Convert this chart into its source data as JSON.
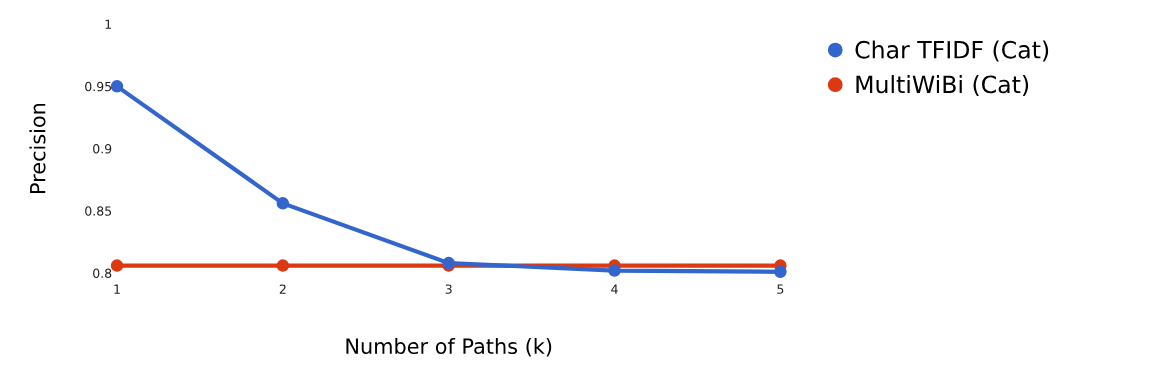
{
  "chart_data": {
    "type": "line",
    "xlabel": "Number of Paths (k)",
    "ylabel": "Precision",
    "x": [
      1,
      2,
      3,
      4,
      5
    ],
    "series": [
      {
        "name": "Char TFIDF (Cat)",
        "color": "#3366cc",
        "values": [
          0.95,
          0.856,
          0.808,
          0.802,
          0.801
        ]
      },
      {
        "name": "MultiWiBi (Cat)",
        "color": "#dc3912",
        "values": [
          0.806,
          0.806,
          0.806,
          0.806,
          0.806
        ]
      }
    ],
    "xlim": [
      1,
      5
    ],
    "xticks": [
      1,
      2,
      3,
      4,
      5
    ],
    "ylim": [
      0.8,
      1
    ],
    "yticks": [
      0.8,
      0.85,
      0.9,
      0.95,
      1
    ],
    "grid": false,
    "legend": "top right",
    "marker": "circle",
    "line_style": "solid"
  }
}
